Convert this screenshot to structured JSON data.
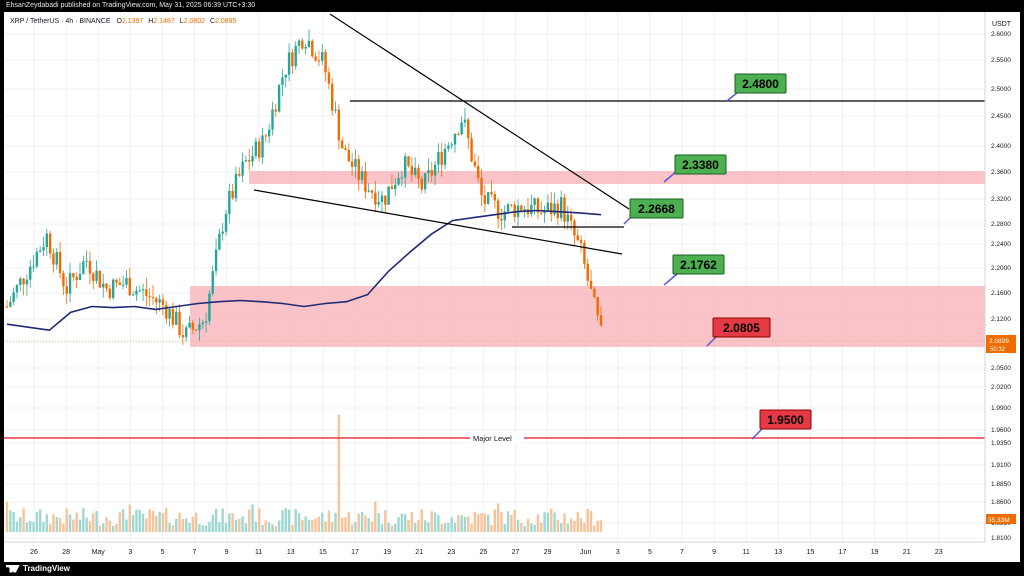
{
  "publisher_text": "EhsanZeydabadi published on TradingView.com, May 31, 2025 06:39 UTC+3:30",
  "legend": {
    "symbol": "XRP / TetherUS · 4h · BINANCE",
    "open_label": "O",
    "open": "2.1397",
    "high_label": "H",
    "high": "2.1487",
    "low_label": "L",
    "low": "2.0802",
    "close_label": "C",
    "close": "2.0895"
  },
  "price_scale": {
    "currency": "USDT",
    "ticks": [
      "2.6000",
      "2.5500",
      "2.5000",
      "2.4500",
      "2.4000",
      "2.3600",
      "2.3200",
      "2.2800",
      "2.2400",
      "2.2000",
      "2.1600",
      "2.1200",
      "2.0800",
      "2.0500",
      "2.0200",
      "1.9900",
      "1.9600",
      "1.9350",
      "1.9100",
      "1.8850",
      "1.8600",
      "1.8350",
      "1.8100"
    ],
    "last_price": "2.0899",
    "countdown": "50:32",
    "volume_badge": "35.33M"
  },
  "time_axis": {
    "labels": [
      "26",
      "28",
      "May",
      "3",
      "5",
      "7",
      "9",
      "11",
      "13",
      "15",
      "17",
      "19",
      "21",
      "23",
      "25",
      "27",
      "29",
      "Jun",
      "3",
      "5",
      "7",
      "9",
      "11",
      "13",
      "15",
      "17",
      "19",
      "21",
      "23"
    ]
  },
  "annotations": {
    "level_2_48": "2.4800",
    "level_2_338": "2.3380",
    "level_2_2668": "2.2668",
    "level_2_1762": "2.1762",
    "level_2_0805": "2.0805",
    "level_1_95": "1.9500",
    "major_level_label": "Major Level"
  },
  "colors": {
    "up": "#26a69a",
    "down": "#ef6c00",
    "ma": "#1e2a78",
    "zone": "#f8a5ad",
    "green_box": "#4caf50",
    "red_box": "#e53945",
    "major_line": "#e53945"
  },
  "brand": "TradingView",
  "chart_data": {
    "type": "candlestick",
    "timeframe": "4h",
    "symbol": "XRPUSDT",
    "ylim": [
      1.81,
      2.62
    ],
    "x_range": [
      "Apr 25",
      "Jun 24"
    ],
    "horizontal_levels": [
      2.48,
      2.338,
      2.2668,
      2.1762,
      2.0805,
      1.95
    ],
    "zones": [
      [
        2.338,
        2.36
      ],
      [
        2.0805,
        2.1762
      ]
    ],
    "last_ohlc": {
      "open": 2.1397,
      "high": 2.1487,
      "low": 2.0802,
      "close": 2.0895
    },
    "ma_series": [
      2.11,
      2.105,
      2.1,
      2.13,
      2.14,
      2.138,
      2.14,
      2.135,
      2.14,
      2.145,
      2.148,
      2.15,
      2.148,
      2.145,
      2.14,
      2.145,
      2.148,
      2.16,
      2.2,
      2.232,
      2.262,
      2.285,
      2.29,
      2.295,
      2.3,
      2.302,
      2.3,
      2.298,
      2.295
    ],
    "close_series": [
      2.14,
      2.2,
      2.26,
      2.17,
      2.22,
      2.17,
      2.18,
      2.16,
      2.14,
      2.09,
      2.12,
      2.3,
      2.38,
      2.42,
      2.54,
      2.6,
      2.55,
      2.4,
      2.35,
      2.32,
      2.38,
      2.34,
      2.4,
      2.46,
      2.32,
      2.3,
      2.31,
      2.3,
      2.31,
      2.23,
      2.09
    ]
  }
}
